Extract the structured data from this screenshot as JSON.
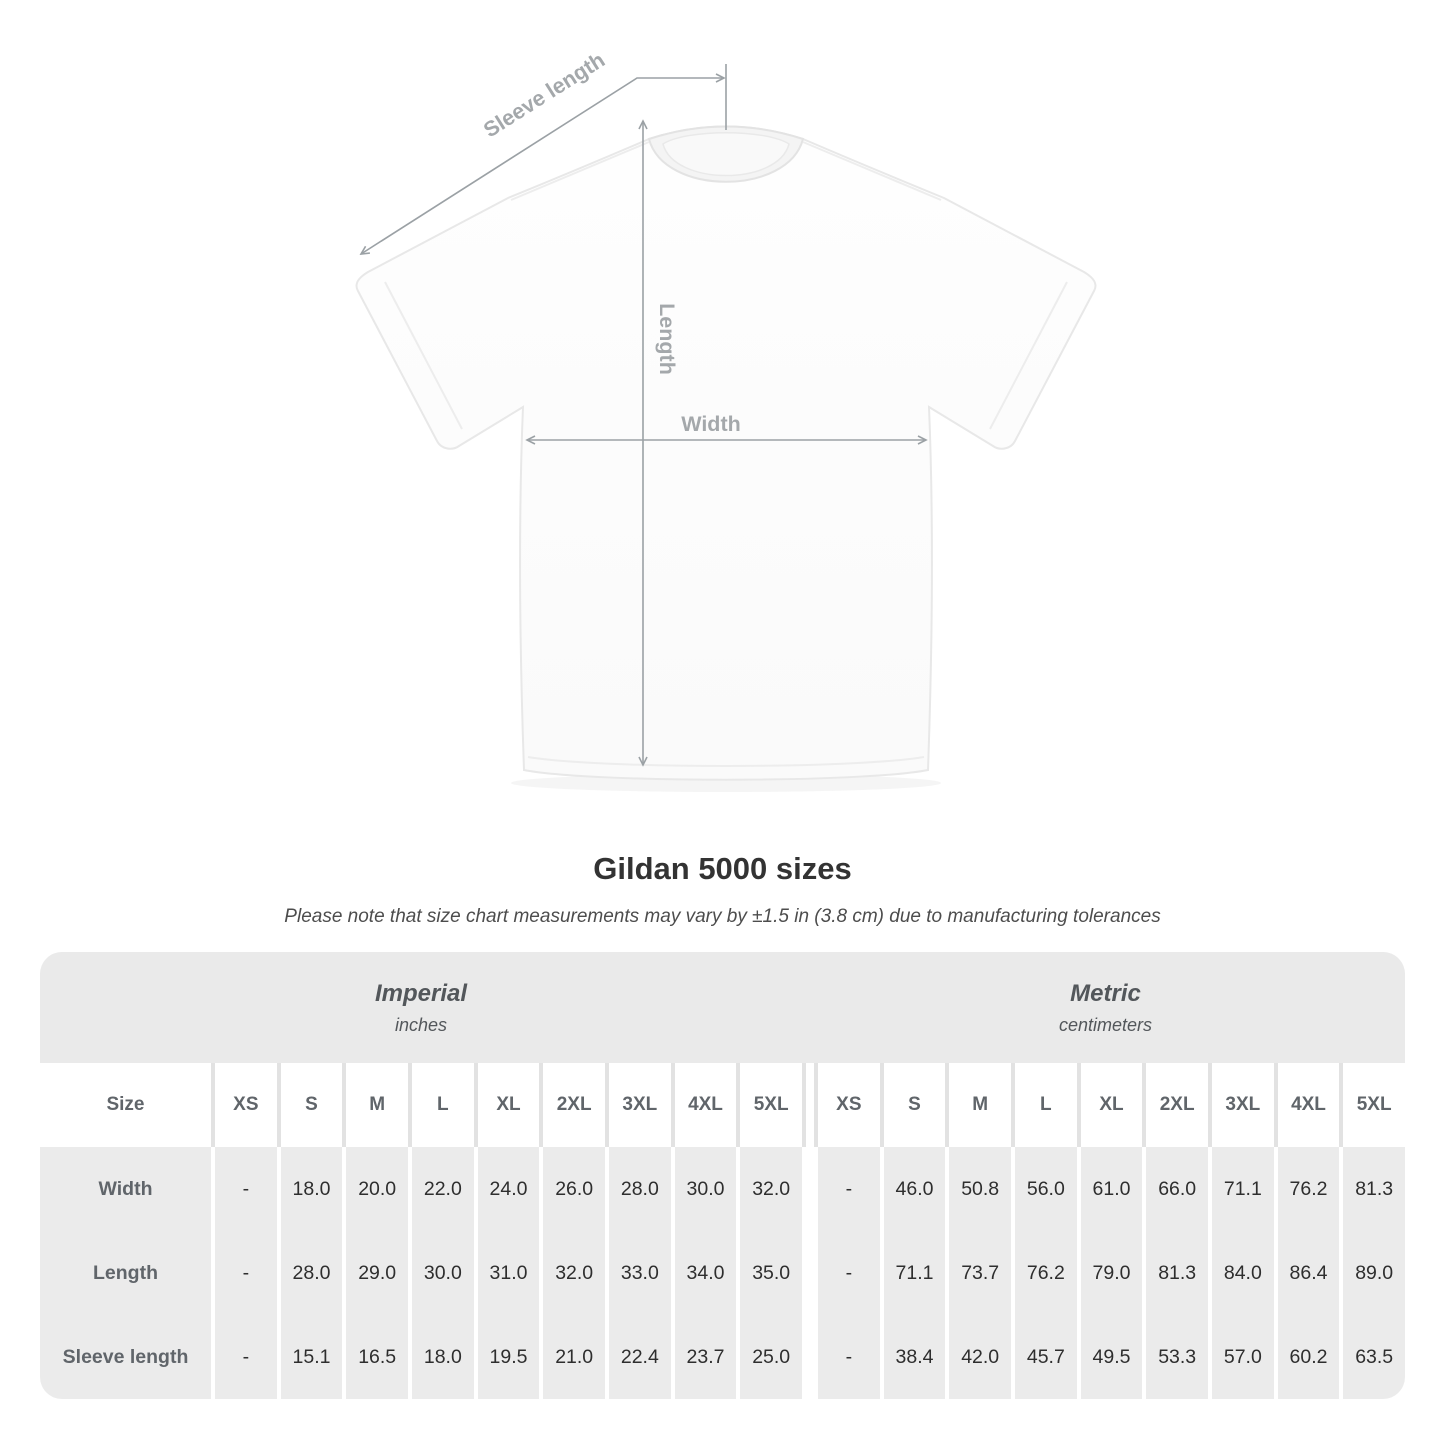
{
  "diagram": {
    "labels": {
      "sleeve_length": "Sleeve length",
      "length": "Length",
      "width": "Width"
    }
  },
  "title": "Gildan 5000 sizes",
  "subtitle": "Please note that size chart measurements may vary by ±1.5 in (3.8 cm) due to manufacturing tolerances",
  "table": {
    "size_header": "Size",
    "sizes": [
      "XS",
      "S",
      "M",
      "L",
      "XL",
      "2XL",
      "3XL",
      "4XL",
      "5XL"
    ],
    "sections": [
      {
        "name": "Imperial",
        "unit": "inches"
      },
      {
        "name": "Metric",
        "unit": "centimeters"
      }
    ],
    "rows": [
      {
        "label": "Width",
        "imperial": [
          "-",
          "18.0",
          "20.0",
          "22.0",
          "24.0",
          "26.0",
          "28.0",
          "30.0",
          "32.0"
        ],
        "metric": [
          "-",
          "46.0",
          "50.8",
          "56.0",
          "61.0",
          "66.0",
          "71.1",
          "76.2",
          "81.3"
        ]
      },
      {
        "label": "Length",
        "imperial": [
          "-",
          "28.0",
          "29.0",
          "30.0",
          "31.0",
          "32.0",
          "33.0",
          "34.0",
          "35.0"
        ],
        "metric": [
          "-",
          "71.1",
          "73.7",
          "76.2",
          "79.0",
          "81.3",
          "84.0",
          "86.4",
          "89.0"
        ]
      },
      {
        "label": "Sleeve length",
        "imperial": [
          "-",
          "15.1",
          "16.5",
          "18.0",
          "19.5",
          "21.0",
          "22.4",
          "23.7",
          "25.0"
        ],
        "metric": [
          "-",
          "38.4",
          "42.0",
          "45.7",
          "49.5",
          "53.3",
          "57.0",
          "60.2",
          "63.5"
        ]
      }
    ]
  },
  "chart_data": {
    "type": "table",
    "title": "Gildan 5000 sizes",
    "note": "Size chart measurements may vary by ±1.5 in (3.8 cm) due to manufacturing tolerances",
    "column_groups": [
      {
        "label": "Imperial",
        "unit": "inches",
        "sizes": [
          "XS",
          "S",
          "M",
          "L",
          "XL",
          "2XL",
          "3XL",
          "4XL",
          "5XL"
        ]
      },
      {
        "label": "Metric",
        "unit": "centimeters",
        "sizes": [
          "XS",
          "S",
          "M",
          "L",
          "XL",
          "2XL",
          "3XL",
          "4XL",
          "5XL"
        ]
      }
    ],
    "rows": [
      {
        "measurement": "Width",
        "imperial_in": [
          null,
          18.0,
          20.0,
          22.0,
          24.0,
          26.0,
          28.0,
          30.0,
          32.0
        ],
        "metric_cm": [
          null,
          46.0,
          50.8,
          56.0,
          61.0,
          66.0,
          71.1,
          76.2,
          81.3
        ]
      },
      {
        "measurement": "Length",
        "imperial_in": [
          null,
          28.0,
          29.0,
          30.0,
          31.0,
          32.0,
          33.0,
          34.0,
          35.0
        ],
        "metric_cm": [
          null,
          71.1,
          73.7,
          76.2,
          79.0,
          81.3,
          84.0,
          86.4,
          89.0
        ]
      },
      {
        "measurement": "Sleeve length",
        "imperial_in": [
          null,
          15.1,
          16.5,
          18.0,
          19.5,
          21.0,
          22.4,
          23.7,
          25.0
        ],
        "metric_cm": [
          null,
          38.4,
          42.0,
          45.7,
          49.5,
          53.3,
          57.0,
          60.2,
          63.5
        ]
      }
    ]
  },
  "colors": {
    "measurement_line": "#9ba1a5",
    "measurement_label": "#a4a8ab",
    "table_banner_bg": "#eaeaea",
    "table_alt_row_bg": "#ebebeb",
    "data_text": "#2e2e2e",
    "header_text": "#60656a",
    "title_text": "#333333"
  }
}
